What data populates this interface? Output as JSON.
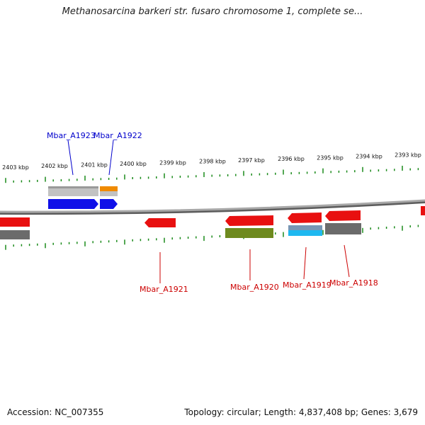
{
  "title": "Methanosarcina barkeri str. fusaro chromosome 1, complete se...",
  "footer": {
    "accession": "Accession: NC_007355",
    "stats": "Topology: circular; Length: 4,837,408 bp; Genes: 3,679"
  },
  "colors": {
    "background": "#ffffff",
    "backbone": "#8a8a8a",
    "tick": "#1a8a1a",
    "forward_label": "#0000cc",
    "reverse_label": "#cc0000",
    "red_feature": "#e81010",
    "blue_feature": "#1010e8",
    "gray_feature": "#bdbdbd",
    "dark_gray_feature": "#6b6b6b",
    "orange_feature": "#f08a00",
    "olive_feature": "#6e8a1e",
    "cyan_feature": "#1eb8f0",
    "steel_feature": "#7896b4"
  },
  "ruler": {
    "labels": [
      "2403 kbp",
      "2402 kbp",
      "2401 kbp",
      "2400 kbp",
      "2399 kbp",
      "2398 kbp",
      "2397 kbp",
      "2396 kbp",
      "2395 kbp",
      "2394 kbp",
      "2393 kbp"
    ]
  },
  "genes": {
    "forward": [
      {
        "name": "Mbar_A1923"
      },
      {
        "name": "Mbar_A1922"
      }
    ],
    "reverse": [
      {
        "name": "Mbar_A1921"
      },
      {
        "name": "Mbar_A1920"
      },
      {
        "name": "Mbar_A1919"
      },
      {
        "name": "Mbar_A1918"
      }
    ]
  }
}
